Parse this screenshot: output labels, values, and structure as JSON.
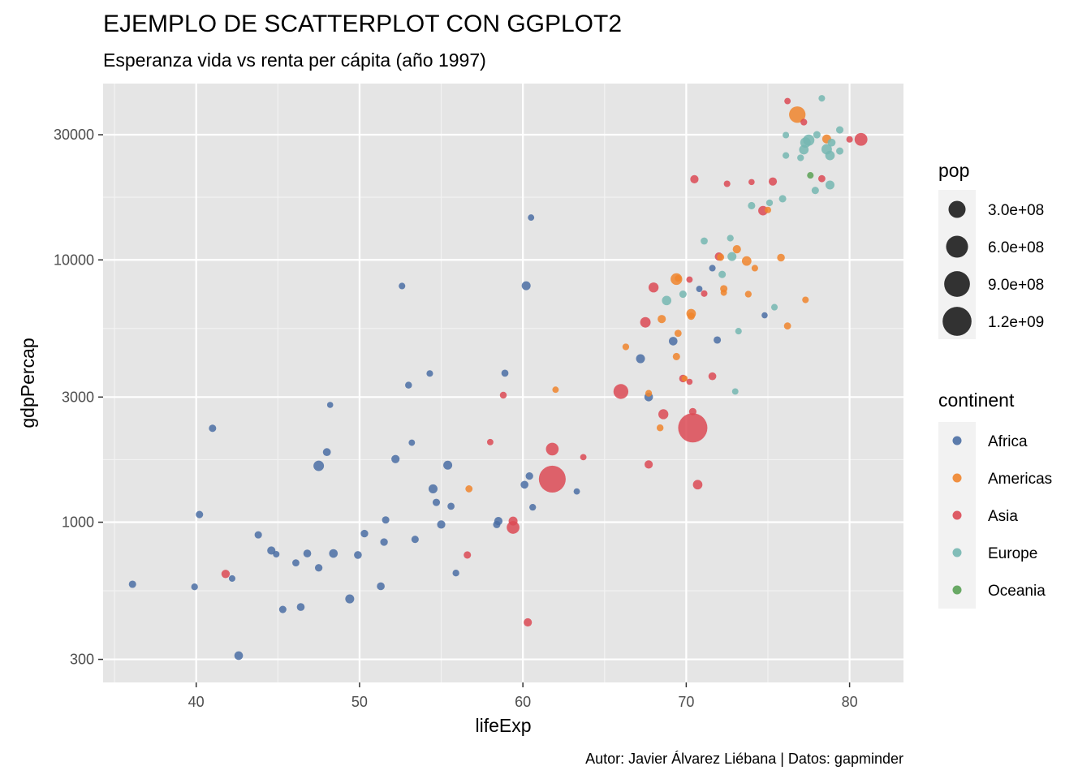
{
  "chart_data": {
    "type": "scatter",
    "title": "EJEMPLO DE SCATTERPLOT CON GGPLOT2",
    "subtitle": "Esperanza vida vs renta per cápita (año 1997)",
    "caption": "Autor: Javier Álvarez Liébana | Datos: gapminder",
    "xlabel": "lifeExp",
    "ylabel": "gdpPercap",
    "xlim": [
      34.3,
      83.3
    ],
    "ylim": [
      245,
      47000
    ],
    "y_scale": "log10",
    "x_ticks": [
      40,
      50,
      60,
      70,
      80
    ],
    "y_ticks": [
      300,
      1000,
      3000,
      10000,
      30000
    ],
    "y_tick_labels": [
      "300",
      "1000",
      "3000",
      "10000",
      "30000"
    ],
    "grid": true,
    "legend_position": "right",
    "size_legend": {
      "title": "pop",
      "entries": [
        {
          "label": "3.0e+08",
          "value": 300000000
        },
        {
          "label": "6.0e+08",
          "value": 600000000
        },
        {
          "label": "9.0e+08",
          "value": 900000000
        },
        {
          "label": "1.2e+09",
          "value": 1200000000
        }
      ]
    },
    "color_legend": {
      "title": "continent",
      "entries": [
        {
          "label": "Africa",
          "color": "#4b6fa4"
        },
        {
          "label": "Americas",
          "color": "#f0852d"
        },
        {
          "label": "Asia",
          "color": "#dc4a55"
        },
        {
          "label": "Europe",
          "color": "#76b7b1"
        },
        {
          "label": "Oceania",
          "color": "#5aa155"
        }
      ]
    },
    "series": [
      {
        "name": "Africa",
        "points": [
          [
            36.1,
            580,
            10000000
          ],
          [
            39.9,
            567,
            5000000
          ],
          [
            40.2,
            1070,
            10000000
          ],
          [
            41.0,
            2280,
            10000000
          ],
          [
            42.2,
            610,
            4000000
          ],
          [
            42.6,
            310,
            25000000
          ],
          [
            43.8,
            895,
            10000000
          ],
          [
            44.6,
            780,
            20000000
          ],
          [
            44.9,
            755,
            4000000
          ],
          [
            45.3,
            465,
            10000000
          ],
          [
            46.1,
            700,
            8000000
          ],
          [
            46.4,
            475,
            15000000
          ],
          [
            46.8,
            760,
            15000000
          ],
          [
            47.5,
            670,
            12000000
          ],
          [
            47.5,
            1640,
            60000000
          ],
          [
            48.0,
            1850,
            16000000
          ],
          [
            48.2,
            2800,
            2000000
          ],
          [
            48.4,
            760,
            25000000
          ],
          [
            49.4,
            510,
            30000000
          ],
          [
            49.9,
            750,
            15000000
          ],
          [
            50.3,
            905,
            12000000
          ],
          [
            51.3,
            570,
            15000000
          ],
          [
            51.5,
            840,
            12000000
          ],
          [
            51.6,
            1020,
            10000000
          ],
          [
            52.2,
            1740,
            20000000
          ],
          [
            52.6,
            7950,
            4000000
          ],
          [
            53.0,
            3330,
            6000000
          ],
          [
            53.2,
            2010,
            3000000
          ],
          [
            53.4,
            860,
            10000000
          ],
          [
            54.3,
            3690,
            4000000
          ],
          [
            54.5,
            1340,
            30000000
          ],
          [
            54.7,
            1190,
            10000000
          ],
          [
            55.0,
            980,
            20000000
          ],
          [
            55.4,
            1650,
            30000000
          ],
          [
            55.6,
            1150,
            8000000
          ],
          [
            55.9,
            640,
            5000000
          ],
          [
            58.4,
            980,
            10000000
          ],
          [
            58.5,
            1010,
            20000000
          ],
          [
            58.9,
            3700,
            8000000
          ],
          [
            60.1,
            1390,
            15000000
          ],
          [
            60.2,
            7970,
            30000000
          ],
          [
            60.4,
            1500,
            12000000
          ],
          [
            60.5,
            14500,
            3000000
          ],
          [
            60.6,
            1140,
            5000000
          ],
          [
            63.3,
            1310,
            3000000
          ],
          [
            67.2,
            4200,
            30000000
          ],
          [
            67.7,
            3000,
            25000000
          ],
          [
            69.2,
            4900,
            25000000
          ],
          [
            70.8,
            7750,
            3000000
          ],
          [
            71.6,
            9300,
            4000000
          ],
          [
            71.9,
            4950,
            10000000
          ],
          [
            74.8,
            6150,
            2000000
          ]
        ]
      },
      {
        "name": "Americas",
        "points": [
          [
            56.7,
            1340,
            8000000
          ],
          [
            62.0,
            3200,
            3000000
          ],
          [
            66.3,
            4660,
            5000000
          ],
          [
            67.7,
            3100,
            5000000
          ],
          [
            68.4,
            2290,
            6000000
          ],
          [
            68.5,
            5950,
            20000000
          ],
          [
            69.4,
            4280,
            10000000
          ],
          [
            69.4,
            8450,
            90000000
          ],
          [
            69.5,
            8500,
            4000000
          ],
          [
            69.5,
            5250,
            8000000
          ],
          [
            69.9,
            3530,
            2000000
          ],
          [
            70.3,
            6240,
            40000000
          ],
          [
            70.3,
            6100,
            10000000
          ],
          [
            72.1,
            10240,
            10000000
          ],
          [
            72.3,
            7760,
            10000000
          ],
          [
            72.3,
            7500,
            3000000
          ],
          [
            73.1,
            10980,
            20000000
          ],
          [
            73.7,
            9900,
            40000000
          ],
          [
            73.8,
            7400,
            5000000
          ],
          [
            74.2,
            9300,
            4000000
          ],
          [
            75.8,
            10200,
            14000000
          ],
          [
            76.2,
            5600,
            8000000
          ],
          [
            77.3,
            7040,
            4000000
          ],
          [
            75.0,
            15500,
            4000000
          ],
          [
            76.8,
            35800,
            270000000
          ],
          [
            78.6,
            28900,
            30000000
          ]
        ]
      },
      {
        "name": "Asia",
        "points": [
          [
            41.8,
            635,
            22000000
          ],
          [
            56.6,
            750,
            10000000
          ],
          [
            58.0,
            2020,
            3000000
          ],
          [
            58.8,
            3050,
            6000000
          ],
          [
            59.4,
            1010,
            30000000
          ],
          [
            59.4,
            955,
            120000000
          ],
          [
            60.3,
            415,
            20000000
          ],
          [
            61.8,
            1460,
            1000000000
          ],
          [
            61.8,
            1900,
            120000000
          ],
          [
            63.7,
            1770,
            3000000
          ],
          [
            66.0,
            3150,
            200000000
          ],
          [
            67.7,
            1660,
            20000000
          ],
          [
            68.0,
            7850,
            50000000
          ],
          [
            68.6,
            2580,
            50000000
          ],
          [
            67.5,
            5780,
            60000000
          ],
          [
            69.8,
            3530,
            12000000
          ],
          [
            70.2,
            3430,
            2000000
          ],
          [
            70.4,
            2290,
            1230000000
          ],
          [
            70.4,
            2640,
            10000000
          ],
          [
            70.7,
            1390,
            40000000
          ],
          [
            70.2,
            8410,
            3000000
          ],
          [
            71.1,
            7440,
            4000000
          ],
          [
            71.6,
            3600,
            15000000
          ],
          [
            72.0,
            10300,
            20000000
          ],
          [
            70.5,
            20300,
            20000000
          ],
          [
            72.5,
            19500,
            4000000
          ],
          [
            74.0,
            19800,
            2000000
          ],
          [
            74.7,
            15400,
            40000000
          ],
          [
            75.3,
            19900,
            20000000
          ],
          [
            76.2,
            40300,
            3000000
          ],
          [
            77.2,
            33500,
            5000000
          ],
          [
            78.3,
            20400,
            8000000
          ],
          [
            80.0,
            28800,
            4000000
          ],
          [
            80.7,
            28800,
            125000000
          ]
        ]
      },
      {
        "name": "Europe",
        "points": [
          [
            68.8,
            7000,
            38000000
          ],
          [
            69.8,
            7400,
            10000000
          ],
          [
            71.1,
            11800,
            8000000
          ],
          [
            72.2,
            8800,
            10000000
          ],
          [
            72.7,
            12100,
            5000000
          ],
          [
            72.8,
            10300,
            30000000
          ],
          [
            73.0,
            3150,
            3000000
          ],
          [
            73.2,
            5350,
            4000000
          ],
          [
            74.0,
            16100,
            10000000
          ],
          [
            75.4,
            6600,
            4000000
          ],
          [
            75.1,
            16500,
            5000000
          ],
          [
            75.9,
            17100,
            10000000
          ],
          [
            76.1,
            29900,
            4000000
          ],
          [
            76.1,
            25000,
            5000000
          ],
          [
            77.0,
            24500,
            5000000
          ],
          [
            77.2,
            26300,
            40000000
          ],
          [
            77.3,
            28000,
            60000000
          ],
          [
            77.5,
            28600,
            80000000
          ],
          [
            77.9,
            18400,
            10000000
          ],
          [
            78.0,
            30000,
            10000000
          ],
          [
            78.3,
            41300,
            4000000
          ],
          [
            78.6,
            26400,
            60000000
          ],
          [
            78.8,
            25000,
            40000000
          ],
          [
            78.8,
            19300,
            30000000
          ],
          [
            78.9,
            28000,
            16000000
          ],
          [
            79.4,
            31300,
            10000000
          ],
          [
            79.4,
            26000,
            9000000
          ]
        ]
      },
      {
        "name": "Oceania",
        "points": [
          [
            77.6,
            21000,
            4000000
          ]
        ]
      }
    ]
  }
}
